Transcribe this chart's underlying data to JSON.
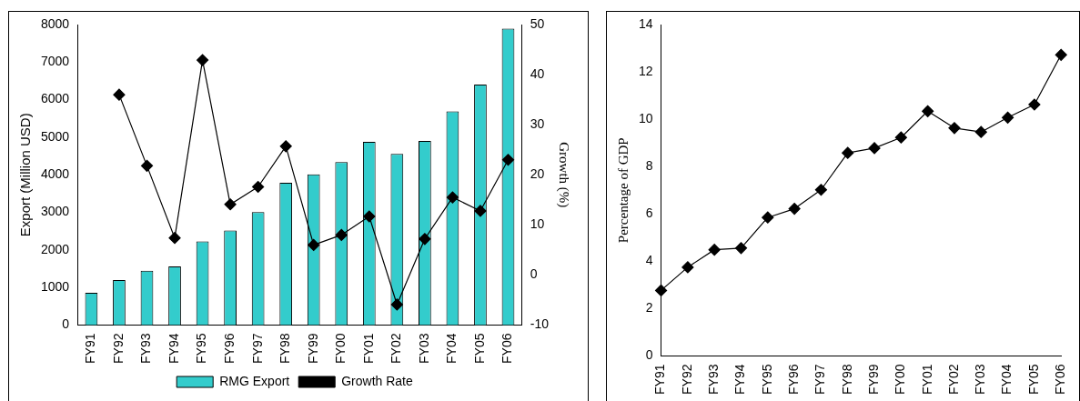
{
  "chart_data": [
    {
      "type": "bar",
      "categories": [
        "FY91",
        "FY92",
        "FY93",
        "FY94",
        "FY95",
        "FY96",
        "FY97",
        "FY98",
        "FY99",
        "FY00",
        "FY01",
        "FY02",
        "FY03",
        "FY04",
        "FY05",
        "FY06"
      ],
      "series": [
        {
          "name": "RMG Export",
          "color": "#33cccc",
          "values": [
            860,
            1200,
            1450,
            1560,
            2230,
            2520,
            3010,
            3790,
            4010,
            4340,
            4880,
            4560,
            4900,
            5690,
            6400,
            7890
          ]
        },
        {
          "name": "Growth Rate",
          "type": "line",
          "axis": "y2",
          "color": "#000000",
          "values": [
            null,
            36,
            21.8,
            7.4,
            42.9,
            14.1,
            17.6,
            25.7,
            6.0,
            8.0,
            11.7,
            -5.9,
            7.2,
            15.5,
            12.8,
            23.0
          ]
        }
      ],
      "ylabel": "Export (Million USD)",
      "y2label": "Growth (%)",
      "ylim": [
        0,
        8000
      ],
      "yticks": [
        0,
        1000,
        2000,
        3000,
        4000,
        5000,
        6000,
        7000,
        8000
      ],
      "y2lim": [
        -10,
        50
      ],
      "y2ticks": [
        -10,
        0,
        10,
        20,
        30,
        40,
        50
      ],
      "marker": "diamond",
      "grid": false,
      "legend": "bottom"
    },
    {
      "type": "line",
      "categories": [
        "FY91",
        "FY92",
        "FY93",
        "FY94",
        "FY95",
        "FY96",
        "FY97",
        "FY98",
        "FY99",
        "FY00",
        "FY01",
        "FY02",
        "FY03",
        "FY04",
        "FY05",
        "FY06"
      ],
      "series": [
        {
          "color": "#000000",
          "values": [
            2.77,
            3.75,
            4.49,
            4.56,
            5.85,
            6.22,
            7.02,
            8.58,
            8.78,
            9.23,
            10.34,
            9.63,
            9.46,
            10.07,
            10.62,
            12.72
          ]
        }
      ],
      "ylabel": "Percentage of GDP",
      "ylim": [
        0,
        14
      ],
      "yticks": [
        0,
        2,
        4,
        6,
        8,
        10,
        12,
        14
      ],
      "marker": "diamond",
      "grid": false,
      "legend": false
    }
  ]
}
